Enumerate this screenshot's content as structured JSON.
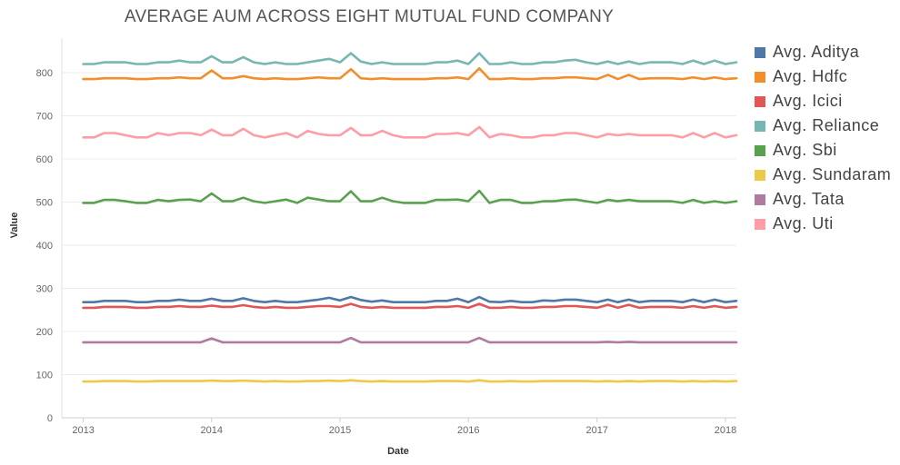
{
  "chart_data": {
    "type": "line",
    "title": "AVERAGE AUM ACROSS EIGHT MUTUAL FUND COMPANY",
    "xlabel": "Date",
    "ylabel": "Value",
    "x_ticks": [
      "2013",
      "2014",
      "2015",
      "2016",
      "2017",
      "2018"
    ],
    "y_ticks": [
      0,
      100,
      200,
      300,
      400,
      500,
      600,
      700,
      800
    ],
    "xlim": [
      "2012-11-01",
      "2018-02-01"
    ],
    "ylim": [
      0,
      880
    ],
    "grid": "horizontal",
    "legend_placement": "right",
    "x_start": "2013-01",
    "series": [
      {
        "name": "Avg. Aditya",
        "color": "#4e79a7",
        "values": [
          268,
          268,
          271,
          271,
          271,
          268,
          268,
          271,
          271,
          274,
          271,
          271,
          276,
          271,
          271,
          277,
          271,
          268,
          271,
          268,
          268,
          271,
          274,
          278,
          272,
          280,
          273,
          269,
          272,
          268,
          268,
          268,
          268,
          271,
          271,
          276,
          268,
          280,
          269,
          268,
          271,
          268,
          268,
          272,
          271,
          274,
          274,
          271,
          268,
          274,
          268,
          274,
          268,
          271,
          271,
          271,
          268,
          274,
          268,
          274,
          268,
          271
        ]
      },
      {
        "name": "Avg. Hdfc",
        "color": "#f28e2b",
        "values": [
          785,
          785,
          787,
          787,
          787,
          785,
          785,
          787,
          787,
          789,
          787,
          787,
          805,
          787,
          787,
          792,
          787,
          785,
          787,
          785,
          785,
          787,
          789,
          787,
          787,
          808,
          787,
          785,
          787,
          785,
          785,
          785,
          785,
          787,
          787,
          789,
          785,
          810,
          785,
          785,
          787,
          785,
          785,
          787,
          787,
          789,
          789,
          787,
          785,
          795,
          785,
          795,
          785,
          787,
          787,
          787,
          785,
          789,
          785,
          789,
          785,
          787
        ]
      },
      {
        "name": "Avg. Icici",
        "color": "#e15759",
        "values": [
          255,
          255,
          257,
          257,
          257,
          255,
          255,
          257,
          257,
          259,
          257,
          257,
          260,
          257,
          257,
          261,
          257,
          255,
          257,
          255,
          255,
          257,
          259,
          259,
          257,
          264,
          257,
          255,
          257,
          255,
          255,
          255,
          255,
          257,
          257,
          259,
          255,
          264,
          255,
          255,
          257,
          255,
          255,
          257,
          257,
          259,
          259,
          257,
          255,
          262,
          255,
          262,
          255,
          257,
          257,
          257,
          255,
          259,
          255,
          259,
          255,
          257
        ]
      },
      {
        "name": "Avg. Reliance",
        "color": "#76b7b2",
        "values": [
          820,
          820,
          824,
          824,
          824,
          820,
          820,
          824,
          824,
          828,
          824,
          824,
          838,
          824,
          824,
          836,
          824,
          820,
          824,
          820,
          820,
          824,
          828,
          832,
          824,
          845,
          826,
          820,
          824,
          820,
          820,
          820,
          820,
          824,
          824,
          828,
          820,
          845,
          820,
          820,
          824,
          820,
          820,
          824,
          824,
          828,
          830,
          824,
          820,
          826,
          820,
          826,
          820,
          824,
          824,
          824,
          820,
          828,
          820,
          828,
          820,
          824
        ]
      },
      {
        "name": "Avg. Sbi",
        "color": "#59a14f",
        "values": [
          498,
          498,
          505,
          505,
          502,
          498,
          498,
          505,
          502,
          505,
          506,
          502,
          520,
          502,
          502,
          510,
          502,
          498,
          502,
          506,
          498,
          510,
          506,
          502,
          502,
          525,
          502,
          502,
          510,
          502,
          498,
          498,
          498,
          505,
          505,
          506,
          502,
          526,
          498,
          505,
          505,
          498,
          498,
          502,
          502,
          505,
          506,
          502,
          498,
          505,
          502,
          505,
          502,
          502,
          502,
          502,
          498,
          505,
          498,
          502,
          498,
          502
        ]
      },
      {
        "name": "Avg. Sundaram",
        "color": "#edc948",
        "values": [
          84,
          84,
          85,
          85,
          85,
          84,
          84,
          85,
          85,
          85,
          85,
          85,
          86,
          85,
          85,
          86,
          85,
          84,
          85,
          84,
          84,
          85,
          85,
          86,
          85,
          87,
          85,
          84,
          85,
          84,
          84,
          84,
          84,
          85,
          85,
          85,
          84,
          87,
          84,
          84,
          85,
          84,
          84,
          85,
          85,
          85,
          85,
          85,
          84,
          85,
          84,
          85,
          84,
          85,
          85,
          85,
          84,
          85,
          84,
          85,
          84,
          85
        ]
      },
      {
        "name": "Avg. Tata",
        "color": "#b07aa1",
        "values": [
          175,
          175,
          175,
          175,
          175,
          175,
          175,
          175,
          175,
          175,
          175,
          175,
          184,
          175,
          175,
          175,
          175,
          175,
          175,
          175,
          175,
          175,
          175,
          175,
          175,
          185,
          175,
          175,
          175,
          175,
          175,
          175,
          175,
          175,
          175,
          175,
          175,
          185,
          175,
          175,
          175,
          175,
          175,
          175,
          175,
          175,
          175,
          175,
          175,
          176,
          175,
          176,
          175,
          175,
          175,
          175,
          175,
          175,
          175,
          175,
          175,
          175
        ]
      },
      {
        "name": "Avg. Uti",
        "color": "#ff9da7",
        "values": [
          650,
          650,
          660,
          660,
          655,
          650,
          650,
          660,
          655,
          660,
          660,
          655,
          668,
          655,
          655,
          670,
          655,
          650,
          655,
          660,
          650,
          665,
          658,
          655,
          655,
          672,
          655,
          655,
          665,
          655,
          650,
          650,
          650,
          658,
          658,
          660,
          655,
          674,
          650,
          658,
          655,
          650,
          650,
          655,
          655,
          660,
          660,
          655,
          650,
          658,
          655,
          658,
          655,
          655,
          655,
          655,
          650,
          660,
          650,
          660,
          650,
          655
        ]
      }
    ]
  }
}
